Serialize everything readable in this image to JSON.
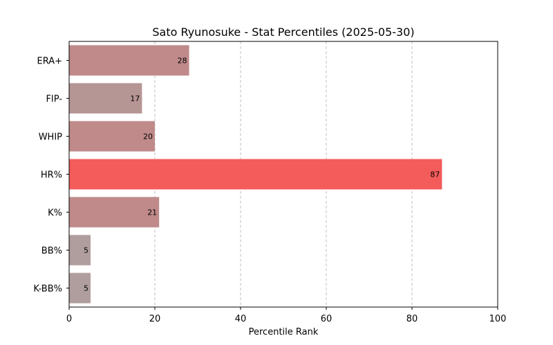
{
  "chart_data": {
    "type": "bar",
    "orientation": "horizontal",
    "title": "Sato Ryunosuke - Stat Percentiles (2025-05-30)",
    "xlabel": "Percentile Rank",
    "ylabel": "",
    "xlim": [
      0,
      100
    ],
    "xticks": [
      0,
      20,
      40,
      60,
      80,
      100
    ],
    "grid": "x-dashed",
    "categories": [
      "ERA+",
      "FIP-",
      "WHIP",
      "HR%",
      "K%",
      "BB%",
      "K-BB%"
    ],
    "values": [
      28,
      17,
      20,
      87,
      21,
      5,
      5
    ],
    "colors": [
      "#c08a8a",
      "#b69595",
      "#c08a8a",
      "#f45b5b",
      "#c08a8a",
      "#b09e9e",
      "#b09e9e"
    ]
  }
}
